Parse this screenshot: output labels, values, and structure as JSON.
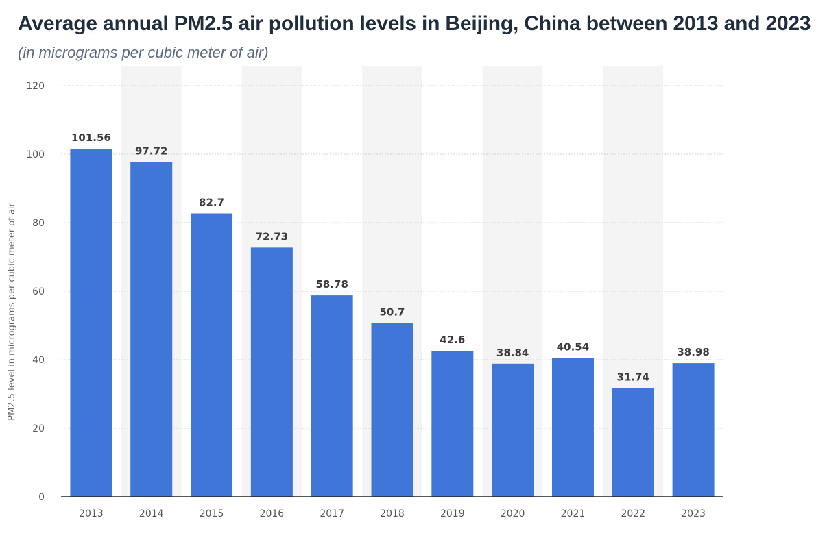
{
  "header": {
    "title": "Average annual PM2.5 air pollution levels in Beijing, China between 2013 and 2023",
    "subtitle": "(in micrograms per cubic meter of air)"
  },
  "colors": {
    "bar": "#3f76d8",
    "band": "#f4f4f4",
    "grid": "#cfcfcf",
    "axis": "#222222"
  },
  "chart_data": {
    "type": "bar",
    "title": "Average annual PM2.5 air pollution levels in Beijing, China between 2013 and 2023",
    "subtitle": "(in micrograms per cubic meter of air)",
    "xlabel": "",
    "ylabel": "PM2.5 level in micrograms per cubic meter of air",
    "categories": [
      "2013",
      "2014",
      "2015",
      "2016",
      "2017",
      "2018",
      "2019",
      "2020",
      "2021",
      "2022",
      "2023"
    ],
    "values": [
      101.56,
      97.72,
      82.7,
      72.73,
      58.78,
      50.7,
      42.6,
      38.84,
      40.54,
      31.74,
      38.98
    ],
    "data_labels": [
      "101.56",
      "97.72",
      "82.7",
      "72.73",
      "58.78",
      "50.7",
      "42.6",
      "38.84",
      "40.54",
      "31.74",
      "38.98"
    ],
    "yticks": [
      0,
      20,
      40,
      60,
      80,
      100,
      120
    ],
    "ylim": [
      0,
      120
    ],
    "grid": true,
    "legend": "none"
  }
}
